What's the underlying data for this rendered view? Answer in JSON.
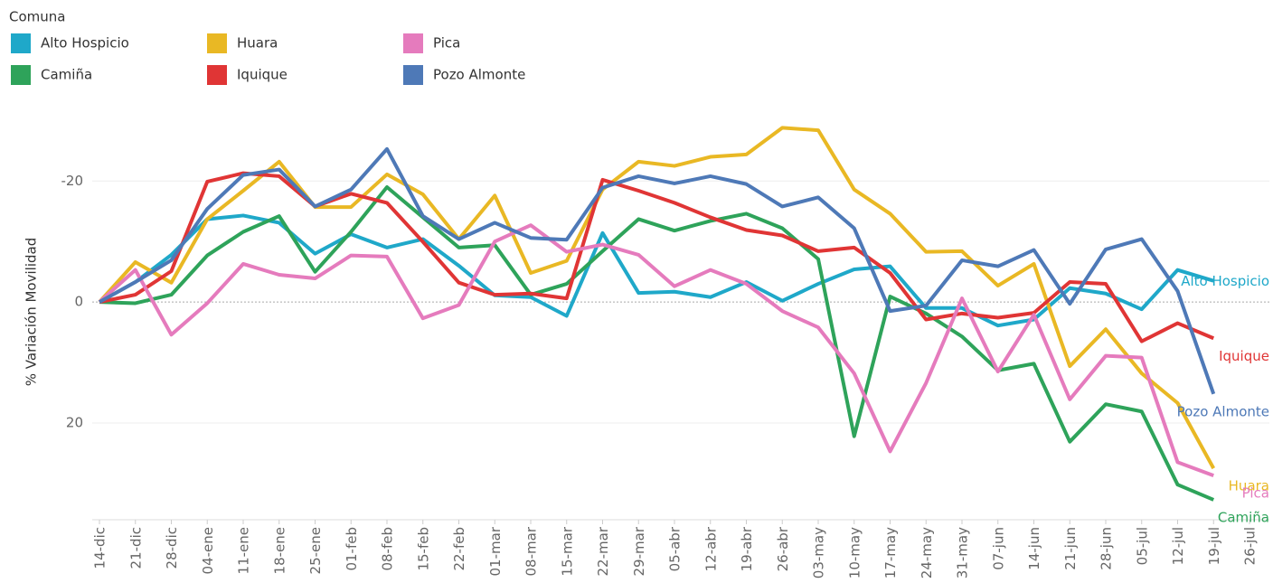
{
  "chart_data": {
    "type": "line",
    "legend_title": "Comuna",
    "y_label": "% Variación Movilidad",
    "categories": [
      "14-dic",
      "21-dic",
      "28-dic",
      "04-ene",
      "11-ene",
      "18-ene",
      "25-ene",
      "01-feb",
      "08-feb",
      "15-feb",
      "22-feb",
      "01-mar",
      "08-mar",
      "15-mar",
      "22-mar",
      "29-mar",
      "05-abr",
      "12-abr",
      "19-abr",
      "26-abr",
      "03-may",
      "10-may",
      "17-may",
      "24-may",
      "31-may",
      "07-jun",
      "14-jun",
      "21-jun",
      "28-jun",
      "05-jul",
      "12-jul",
      "19-jul",
      "26-jul"
    ],
    "ylim": [
      36,
      -32
    ],
    "yticks": [
      -20,
      0,
      20
    ],
    "grid": true,
    "series": [
      {
        "name": "Alto Hospicio",
        "color": "#1fa8c9",
        "values": [
          0,
          -3.3,
          -7.8,
          -13.7,
          -14.3,
          -13.1,
          -8,
          -11.2,
          -9,
          -10.4,
          -6,
          -1.1,
          -0.8,
          2.3,
          -11.4,
          -1.5,
          -1.7,
          -0.8,
          -3.3,
          -0.2,
          -3,
          -5.4,
          -5.9,
          1,
          1,
          3.9,
          2.9,
          -2.3,
          -1.4,
          1.2,
          -5.3,
          -3.5,
          null
        ]
      },
      {
        "name": "Camiña",
        "color": "#2ea35a",
        "values": [
          0,
          0.2,
          -1.2,
          -7.7,
          -11.6,
          -14.2,
          -5,
          -11.6,
          -19,
          -14,
          -9,
          -9.4,
          -1.2,
          -3,
          -8.4,
          -13.7,
          -11.8,
          -13.4,
          -14.6,
          -12.2,
          -7.1,
          22.2,
          -0.9,
          1.9,
          5.7,
          11.3,
          10.2,
          23.1,
          16.9,
          18.1,
          30.2,
          32.7,
          null
        ]
      },
      {
        "name": "Huara",
        "color": "#e9b824",
        "values": [
          0,
          -6.6,
          -3.2,
          -13.7,
          -18.4,
          -23.2,
          -15.7,
          -15.7,
          -21.1,
          -17.8,
          -10.4,
          -17.6,
          -4.8,
          -6.8,
          -18.6,
          -23.2,
          -22.5,
          -24,
          -24.4,
          -28.8,
          -28.4,
          -18.6,
          -14.6,
          -8.3,
          -8.4,
          -2.7,
          -6.3,
          10.6,
          4.5,
          11.8,
          16.7,
          27.5,
          null
        ]
      },
      {
        "name": "Iquique",
        "color": "#e03535",
        "values": [
          0,
          -1.2,
          -5.1,
          -19.9,
          -21.3,
          -20.8,
          -15.8,
          -17.9,
          -16.4,
          -9.95,
          -3.2,
          -1.2,
          -1.4,
          -0.6,
          -20.2,
          -18.4,
          -16.4,
          -14,
          -11.9,
          -11,
          -8.4,
          -9,
          -4.8,
          2.9,
          1.9,
          2.6,
          1.8,
          -3.3,
          -3,
          6.5,
          3.5,
          6,
          null
        ]
      },
      {
        "name": "Pica",
        "color": "#e57bbd",
        "values": [
          0,
          -5.3,
          5.4,
          0.2,
          -6.3,
          -4.5,
          -3.9,
          -7.7,
          -7.5,
          2.7,
          0.5,
          -10,
          -12.7,
          -8.3,
          -9.5,
          -7.8,
          -2.6,
          -5.3,
          -3,
          1.5,
          4.2,
          11.8,
          24.7,
          13.4,
          -0.6,
          11.5,
          2.1,
          16.1,
          8.9,
          9.2,
          26.5,
          28.7,
          null
        ]
      },
      {
        "name": "Pozo Almonte",
        "color": "#4e79b7",
        "values": [
          0,
          -3.3,
          -6.9,
          -15.4,
          -21,
          -21.9,
          -15.8,
          -18.6,
          -25.3,
          -14.2,
          -10.4,
          -13.1,
          -10.6,
          -10.3,
          -18.9,
          -20.8,
          -19.6,
          -20.8,
          -19.5,
          -15.8,
          -17.3,
          -12.2,
          1.5,
          0.6,
          -6.9,
          -5.9,
          -8.6,
          0.3,
          -8.7,
          -10.4,
          -1.8,
          15.2,
          null
        ]
      }
    ]
  }
}
